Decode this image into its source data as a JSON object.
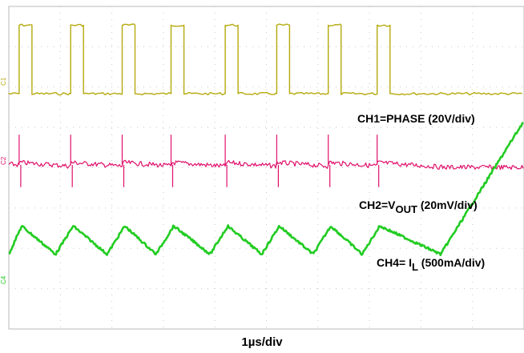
{
  "chart_data": {
    "type": "line",
    "title": "",
    "xlabel": "1µs/div",
    "ylabel": "",
    "grid": true,
    "divisions": {
      "horizontal": 10,
      "vertical": 8
    },
    "time_per_div_us": 1,
    "series": [
      {
        "channel": "CH1",
        "marker": "1",
        "label": "CH1=PHASE (20V/div)",
        "color": "#b5a90c",
        "waveform": "pulse",
        "high_div": 1.5,
        "low_div": -0.2,
        "rise_times_us": [
          0.2,
          1.2,
          2.2,
          3.15,
          4.2,
          5.2,
          6.2,
          7.15
        ],
        "pulse_width_us": 0.25,
        "period_us": 0.98
      },
      {
        "channel": "CH2",
        "marker": "2",
        "label_prefix": "CH2=V",
        "label_sub": "OUT",
        "label_suffix": " (20mV/div)",
        "color": "#e0106b",
        "waveform": "ripple",
        "spike_times_us": [
          0.2,
          1.2,
          2.2,
          3.15,
          4.2,
          5.2,
          6.2,
          7.15
        ],
        "spike_up_div": 0.75,
        "spike_down_div": -0.55
      },
      {
        "channel": "CH4",
        "marker": "4",
        "label_prefix": "CH4= I",
        "label_sub": "L",
        "label_suffix": " (500mA/div)",
        "color": "#22cc22",
        "waveform": "triangle",
        "peak_times_us": [
          0.25,
          1.25,
          2.25,
          3.2,
          4.25,
          5.25,
          6.25,
          7.2
        ],
        "peak_div": 0.35,
        "valley_div": -0.35
      }
    ]
  }
}
